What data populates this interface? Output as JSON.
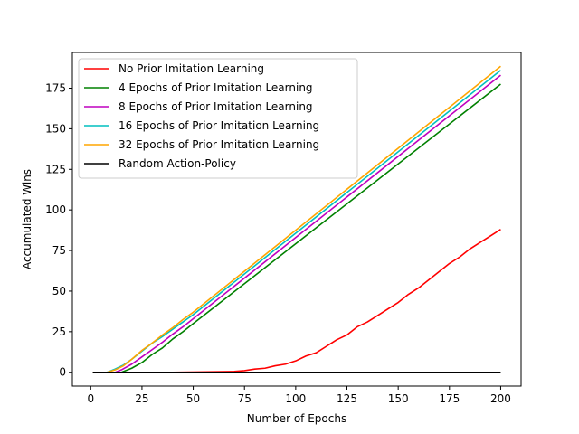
{
  "chart_data": {
    "type": "line",
    "title": "",
    "xlabel": "Number of Epochs",
    "ylabel": "Accumulated Wins",
    "xlim": [
      -8.95,
      209.95
    ],
    "ylim": [
      -8.5,
      197.0
    ],
    "xticks": [
      0,
      25,
      50,
      75,
      100,
      125,
      150,
      175,
      200
    ],
    "yticks": [
      0,
      25,
      50,
      75,
      100,
      125,
      150,
      175
    ],
    "grid": false,
    "legend_position": "top-left",
    "series": [
      {
        "name": "No Prior Imitation Learning",
        "color": "#ff0000",
        "x": [
          1,
          20,
          40,
          60,
          70,
          75,
          80,
          85,
          90,
          95,
          100,
          105,
          110,
          115,
          120,
          125,
          130,
          135,
          140,
          145,
          150,
          155,
          160,
          165,
          170,
          175,
          180,
          185,
          190,
          195,
          200
        ],
        "y": [
          0,
          0,
          0,
          0.3,
          0.5,
          1.0,
          2.0,
          2.5,
          4.0,
          5.0,
          7.0,
          10.0,
          12.0,
          16.0,
          20.0,
          23.0,
          28.0,
          31.0,
          35.0,
          39.0,
          43.0,
          48.0,
          52.0,
          57.0,
          62.0,
          67.0,
          71.0,
          76.0,
          80.0,
          84.0,
          88.0
        ]
      },
      {
        "name": "4 Epochs of Prior Imitation Learning",
        "color": "#008000",
        "x": [
          1,
          15,
          20,
          25,
          30,
          35,
          40,
          45,
          50,
          200
        ],
        "y": [
          0,
          0,
          2.5,
          6.0,
          11.0,
          15.0,
          20.5,
          25.0,
          30.0,
          177.5
        ]
      },
      {
        "name": "8 Epochs of Prior Imitation Learning",
        "color": "#bf00bf",
        "x": [
          1,
          12,
          15,
          20,
          25,
          30,
          35,
          40,
          45,
          50,
          200
        ],
        "y": [
          0,
          0,
          1.5,
          5.0,
          9.5,
          14.0,
          18.5,
          23.5,
          28.0,
          33.0,
          183.0
        ]
      },
      {
        "name": "16 Epochs of Prior Imitation Learning",
        "color": "#00bfbf",
        "x": [
          1,
          8,
          12,
          16,
          20,
          25,
          30,
          35,
          40,
          45,
          50,
          200
        ],
        "y": [
          0,
          0,
          2.0,
          4.5,
          8.0,
          13.0,
          18.0,
          22.0,
          26.5,
          31.0,
          35.5,
          186.0
        ]
      },
      {
        "name": "32 Epochs of Prior Imitation Learning",
        "color": "#ffa500",
        "x": [
          1,
          8,
          12,
          16,
          20,
          25,
          30,
          35,
          40,
          45,
          50,
          200
        ],
        "y": [
          0,
          0,
          1.5,
          4.0,
          8.0,
          13.5,
          18.0,
          23.0,
          27.5,
          32.5,
          37.0,
          188.5
        ]
      },
      {
        "name": "Random Action-Policy",
        "color": "#000000",
        "x": [
          1,
          200
        ],
        "y": [
          0,
          0
        ]
      }
    ]
  }
}
